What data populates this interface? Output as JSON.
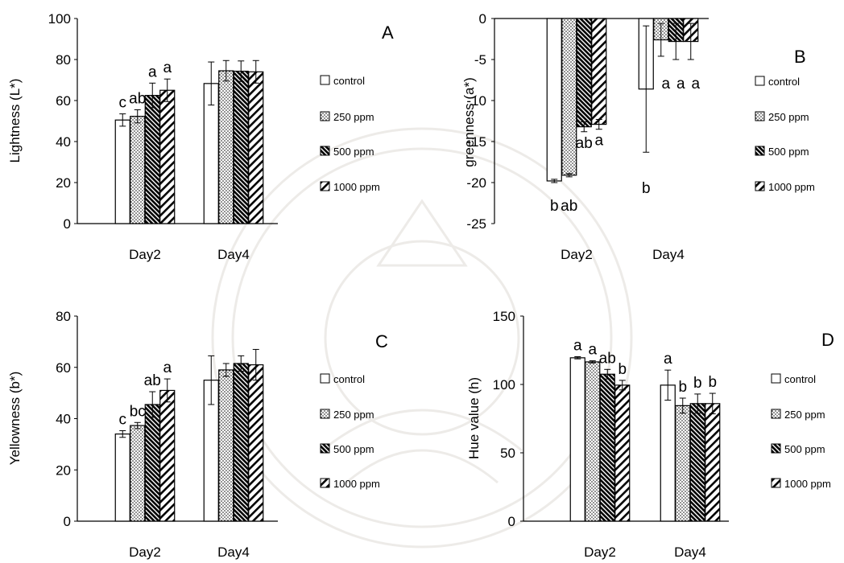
{
  "legend_items": [
    "control",
    "250 ppm",
    "500 ppm",
    "1000 ppm"
  ],
  "chart_data": [
    {
      "type": "bar",
      "panel_label": "A",
      "categories": [
        "Day2",
        "Day4"
      ],
      "ylabel": "Lightness (L*)",
      "ylim": [
        0,
        100
      ],
      "yticks": [
        0,
        20,
        40,
        60,
        80,
        100
      ],
      "series": [
        {
          "name": "control",
          "values": [
            50.5,
            68.3
          ],
          "errors": [
            3.0,
            10.5
          ],
          "letters": [
            "c",
            ""
          ]
        },
        {
          "name": "250 ppm",
          "values": [
            52.3,
            74.5
          ],
          "errors": [
            3.2,
            5.0
          ],
          "letters": [
            "ab",
            ""
          ]
        },
        {
          "name": "500 ppm",
          "values": [
            62.5,
            74.3
          ],
          "errors": [
            6.0,
            5.0
          ],
          "letters": [
            "a",
            ""
          ]
        },
        {
          "name": "1000 ppm",
          "values": [
            65.0,
            74.0
          ],
          "errors": [
            5.5,
            5.5
          ],
          "letters": [
            "a",
            ""
          ]
        }
      ]
    },
    {
      "type": "bar",
      "panel_label": "B",
      "categories": [
        "Day2",
        "Day4"
      ],
      "ylabel": "greenness (a*)",
      "ylim": [
        -25,
        0
      ],
      "yticks": [
        0,
        -5,
        -10,
        -15,
        -20,
        -25
      ],
      "series": [
        {
          "name": "control",
          "values": [
            -19.8,
            -8.6
          ],
          "errors": [
            0.2,
            7.7
          ],
          "letters": [
            "b",
            "b"
          ]
        },
        {
          "name": "250 ppm",
          "values": [
            -19.1,
            -2.6
          ],
          "errors": [
            0.2,
            2.0
          ],
          "letters": [
            "ab",
            "a"
          ]
        },
        {
          "name": "500 ppm",
          "values": [
            -13.2,
            -2.8
          ],
          "errors": [
            0.6,
            2.2
          ],
          "letters": [
            "ab",
            "a"
          ]
        },
        {
          "name": "1000 ppm",
          "values": [
            -12.9,
            -2.8
          ],
          "errors": [
            0.6,
            2.2
          ],
          "letters": [
            "a",
            "a"
          ]
        }
      ]
    },
    {
      "type": "bar",
      "panel_label": "C",
      "categories": [
        "Day2",
        "Day4"
      ],
      "ylabel": "Yellowness (b*)",
      "ylim": [
        0,
        80
      ],
      "yticks": [
        0,
        20,
        40,
        60,
        80
      ],
      "series": [
        {
          "name": "control",
          "values": [
            34.0,
            55.0
          ],
          "errors": [
            1.3,
            9.5
          ],
          "letters": [
            "c",
            ""
          ]
        },
        {
          "name": "250 ppm",
          "values": [
            37.3,
            59.0
          ],
          "errors": [
            1.2,
            2.5
          ],
          "letters": [
            "bc",
            ""
          ]
        },
        {
          "name": "500 ppm",
          "values": [
            45.5,
            61.5
          ],
          "errors": [
            5.0,
            3.0
          ],
          "letters": [
            "ab",
            ""
          ]
        },
        {
          "name": "1000 ppm",
          "values": [
            51.0,
            61.0
          ],
          "errors": [
            4.5,
            6.0
          ],
          "letters": [
            "a",
            ""
          ]
        }
      ]
    },
    {
      "type": "bar",
      "panel_label": "D",
      "categories": [
        "Day2",
        "Day4"
      ],
      "ylabel": "Hue value (h)",
      "ylim": [
        0,
        150
      ],
      "yticks": [
        0,
        50,
        100,
        150
      ],
      "series": [
        {
          "name": "control",
          "values": [
            119.5,
            99.5
          ],
          "errors": [
            0.8,
            11.0
          ],
          "letters": [
            "a",
            "a"
          ]
        },
        {
          "name": "250 ppm",
          "values": [
            116.5,
            84.5
          ],
          "errors": [
            0.8,
            5.5
          ],
          "letters": [
            "a",
            "b"
          ]
        },
        {
          "name": "500 ppm",
          "values": [
            107.5,
            86.0
          ],
          "errors": [
            3.5,
            7.0
          ],
          "letters": [
            "ab",
            "b"
          ]
        },
        {
          "name": "1000 ppm",
          "values": [
            99.5,
            86.0
          ],
          "errors": [
            3.5,
            7.5
          ],
          "letters": [
            "b",
            "b"
          ]
        }
      ]
    }
  ]
}
